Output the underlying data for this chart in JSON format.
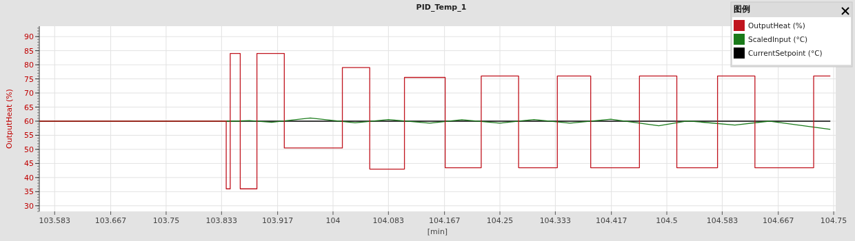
{
  "chart_data": {
    "type": "line",
    "title": "PID_Temp_1",
    "xlabel": "[min]",
    "ylabel": "OutputHeat (%)",
    "legend_title": "图例",
    "legend": "top right",
    "grid": true,
    "xlim": [
      103.56,
      104.753
    ],
    "xticks": [
      103.583,
      103.667,
      103.75,
      103.833,
      103.917,
      104,
      104.083,
      104.167,
      104.25,
      104.333,
      104.417,
      104.5,
      104.583,
      104.667,
      104.75
    ],
    "ylim": [
      28,
      93.7
    ],
    "yticks": [
      30,
      35,
      40,
      45,
      50,
      55,
      60,
      65,
      70,
      75,
      80,
      85,
      90
    ],
    "series": [
      {
        "name": "OutputHeat (%)",
        "type": "step",
        "color": "#c0141e",
        "x": [
          103.56,
          103.84,
          103.846,
          103.861,
          103.886,
          103.927,
          104.014,
          104.055,
          104.107,
          104.168,
          104.222,
          104.278,
          104.336,
          104.386,
          104.459,
          104.515,
          104.576,
          104.632,
          104.72,
          104.745
        ],
        "values": [
          60,
          36,
          84,
          36,
          84,
          50.5,
          79,
          43,
          75.5,
          43.5,
          76,
          43.5,
          76,
          43.5,
          76,
          43.5,
          76,
          43.5,
          76,
          76
        ]
      },
      {
        "name": "ScaledInput (°C)",
        "color": "#1a7a1a",
        "x": [
          103.56,
          103.85,
          103.875,
          103.908,
          103.966,
          104.033,
          104.083,
          104.145,
          104.193,
          104.25,
          104.301,
          104.355,
          104.416,
          104.488,
          104.531,
          104.602,
          104.653,
          104.745
        ],
        "values": [
          60,
          60,
          60.2,
          59.6,
          61.1,
          59.4,
          60.6,
          59.3,
          60.5,
          59.3,
          60.6,
          59.3,
          60.7,
          58.4,
          60.1,
          58.6,
          60,
          57.1
        ]
      },
      {
        "name": "CurrentSetpoint (°C)",
        "color": "#000000",
        "x": [
          103.56,
          104.745
        ],
        "values": [
          60,
          60
        ]
      }
    ]
  }
}
